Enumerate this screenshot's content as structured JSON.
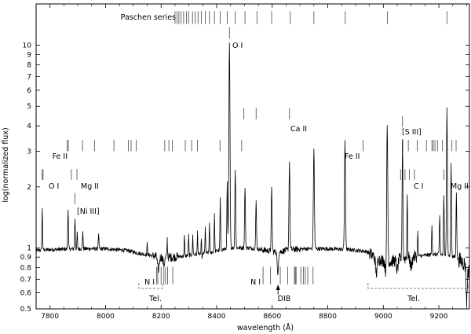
{
  "chart_data": {
    "type": "line",
    "title": "",
    "xlabel": "wavelength (Å)",
    "ylabel": "log(normalized flux)",
    "xlim": [
      7750,
      9310
    ],
    "ylim": [
      0.5,
      16
    ],
    "yscale": "log",
    "grid": false,
    "x_ticks": [
      7800,
      8000,
      8200,
      8400,
      8600,
      8800,
      9000,
      9200
    ],
    "y_ticks": [
      0.5,
      0.6,
      0.7,
      0.8,
      0.9,
      1,
      2,
      3,
      4,
      5,
      6,
      7,
      8,
      9,
      10
    ],
    "y_tick_labels": [
      "0.5",
      "0.6",
      "0.7",
      "0.8",
      "0.9",
      "1",
      "2",
      "3",
      "4",
      "5",
      "6",
      "7",
      "8",
      "9",
      "10"
    ],
    "series": [
      {
        "peaks": [
          {
            "x": 7772,
            "y": 1.55,
            "w": 1.2
          },
          {
            "x": 7865,
            "y": 1.55,
            "w": 1.3
          },
          {
            "x": 7890,
            "y": 1.4,
            "w": 1.2
          },
          {
            "x": 7898,
            "y": 1.2,
            "w": 1.0
          },
          {
            "x": 7918,
            "y": 1.22,
            "w": 1.1
          },
          {
            "x": 7975,
            "y": 1.15,
            "w": 1.3
          },
          {
            "x": 8150,
            "y": 1.05,
            "w": 1.0
          },
          {
            "x": 8222,
            "y": 1.1,
            "w": 1.0
          },
          {
            "x": 8284,
            "y": 1.15,
            "w": 1.0
          },
          {
            "x": 8299,
            "y": 1.15,
            "w": 1.0
          },
          {
            "x": 8314,
            "y": 1.15,
            "w": 1.0
          },
          {
            "x": 8331,
            "y": 1.2,
            "w": 1.0
          },
          {
            "x": 8345,
            "y": 1.22,
            "w": 1.0
          },
          {
            "x": 8359,
            "y": 1.28,
            "w": 1.0
          },
          {
            "x": 8374,
            "y": 1.35,
            "w": 1.0
          },
          {
            "x": 8392,
            "y": 1.45,
            "w": 1.1
          },
          {
            "x": 8413,
            "y": 1.75,
            "w": 1.2
          },
          {
            "x": 8438,
            "y": 2.1,
            "w": 1.3
          },
          {
            "x": 8446,
            "y": 10.2,
            "w": 2.0
          },
          {
            "x": 8467,
            "y": 2.45,
            "w": 1.5
          },
          {
            "x": 8502,
            "y": 2.0,
            "w": 1.5
          },
          {
            "x": 8542,
            "y": 1.7,
            "w": 1.5
          },
          {
            "x": 8598,
            "y": 1.95,
            "w": 1.6
          },
          {
            "x": 8662,
            "y": 2.65,
            "w": 1.7
          },
          {
            "x": 8750,
            "y": 3.1,
            "w": 1.8
          },
          {
            "x": 8862,
            "y": 3.3,
            "w": 1.9
          },
          {
            "x": 9014,
            "y": 4.2,
            "w": 2.0
          },
          {
            "x": 9069,
            "y": 3.45,
            "w": 1.5
          },
          {
            "x": 9086,
            "y": 1.8,
            "w": 1.2
          },
          {
            "x": 9124,
            "y": 1.2,
            "w": 1.2
          },
          {
            "x": 9175,
            "y": 1.3,
            "w": 1.2
          },
          {
            "x": 9203,
            "y": 1.45,
            "w": 1.3
          },
          {
            "x": 9218,
            "y": 1.8,
            "w": 1.3
          },
          {
            "x": 9229,
            "y": 4.9,
            "w": 1.6
          },
          {
            "x": 9244,
            "y": 2.6,
            "w": 1.4
          },
          {
            "x": 9263,
            "y": 1.9,
            "w": 1.3
          }
        ],
        "baseline": [
          [
            7750,
            0.97
          ],
          [
            7800,
            0.98
          ],
          [
            7900,
            0.99
          ],
          [
            8000,
            0.99
          ],
          [
            8080,
            0.97
          ],
          [
            8120,
            0.94
          ],
          [
            8160,
            0.92
          ],
          [
            8200,
            0.9
          ],
          [
            8240,
            0.9
          ],
          [
            8280,
            0.91
          ],
          [
            8330,
            0.93
          ],
          [
            8380,
            0.95
          ],
          [
            8420,
            0.98
          ],
          [
            8460,
            1.0
          ],
          [
            8520,
            1.0
          ],
          [
            8580,
            0.97
          ],
          [
            8620,
            0.95
          ],
          [
            8660,
            0.98
          ],
          [
            8720,
            0.99
          ],
          [
            8800,
            0.99
          ],
          [
            8880,
            0.98
          ],
          [
            8940,
            0.96
          ],
          [
            8980,
            0.88
          ],
          [
            9020,
            0.85
          ],
          [
            9060,
            0.88
          ],
          [
            9100,
            0.9
          ],
          [
            9150,
            0.92
          ],
          [
            9200,
            0.93
          ],
          [
            9260,
            0.9
          ],
          [
            9300,
            0.82
          ],
          [
            9310,
            0.75
          ]
        ],
        "dips": [
          {
            "x": 8190,
            "y": 0.78,
            "w": 3
          },
          {
            "x": 8210,
            "y": 0.83,
            "w": 3
          },
          {
            "x": 8346,
            "y": 0.86,
            "w": 2
          },
          {
            "x": 8620,
            "y": 0.73,
            "w": 2
          },
          {
            "x": 8975,
            "y": 0.75,
            "w": 3
          },
          {
            "x": 9010,
            "y": 0.73,
            "w": 3
          },
          {
            "x": 9050,
            "y": 0.78,
            "w": 3
          },
          {
            "x": 9100,
            "y": 0.8,
            "w": 3
          },
          {
            "x": 9300,
            "y": 0.55,
            "w": 2
          }
        ]
      }
    ],
    "line_markers": [
      {
        "label": "Paschen series",
        "y_pos": 13.7,
        "len": 0.9,
        "label_side": "left",
        "x": [
          8250,
          8257,
          8264,
          8272,
          8281,
          8291,
          8299,
          8313,
          8323,
          8333,
          8345,
          8359,
          8374,
          8392,
          8413,
          8438,
          8467,
          8502,
          8545,
          8598,
          8665,
          8750,
          8863,
          9015,
          9229
        ]
      },
      {
        "label": "O I",
        "y_pos": 11.5,
        "len": 0.8,
        "label_side": "right",
        "x": [
          8446
        ]
      },
      {
        "label": "Ca II",
        "y_pos": 4.6,
        "len": 0.8,
        "label_side": "right",
        "x": [
          8498,
          8542,
          8662
        ]
      },
      {
        "label": "[S III]",
        "y_pos": 4.2,
        "len": 0.8,
        "label_side": "right",
        "x": [
          9069
        ]
      },
      {
        "label": "Fe II",
        "y_pos": 3.2,
        "len": 0.8,
        "label_side": "left",
        "x": [
          7862,
          7866,
          7917,
          7960,
          8030,
          8082,
          8092,
          8110,
          8213,
          8228,
          8240,
          8287,
          8310,
          8331,
          8412,
          8490,
          8927
        ]
      },
      {
        "label": "Fe II",
        "y_pos": 3.2,
        "len": 0.8,
        "label_side": "left",
        "x": [
          8862
        ]
      },
      {
        "label": "",
        "y_pos": 3.2,
        "len": 0.8,
        "label_side": "none",
        "x": [
          9070,
          9090,
          9122,
          9155,
          9175,
          9180,
          9186,
          9195,
          9213,
          9247,
          9262
        ]
      },
      {
        "label": "O I",
        "y_pos": 2.3,
        "len": 0.75,
        "label_side": "right",
        "x": [
          7772,
          7775
        ]
      },
      {
        "label": "Mg II",
        "y_pos": 2.3,
        "len": 0.75,
        "label_side": "right",
        "x": [
          7877,
          7897
        ]
      },
      {
        "label": "C I",
        "y_pos": 2.3,
        "len": 0.75,
        "label_side": "right",
        "x": [
          9062,
          9078,
          9094,
          9112
        ]
      },
      {
        "label": "Mg II",
        "y_pos": 2.3,
        "len": 0.75,
        "label_side": "right",
        "x": [
          9218,
          9244
        ]
      },
      {
        "label": "[Ni III]",
        "y_pos": 1.75,
        "len": 0.8,
        "label_side": "right",
        "x": [
          7890
        ]
      },
      {
        "label": "N I",
        "y_pos": 0.73,
        "len": 1.25,
        "label_side": "left",
        "x": [
          8184,
          8188,
          8200,
          8210,
          8216,
          8223,
          8242
        ]
      },
      {
        "label": "N I",
        "y_pos": 0.73,
        "len": 1.25,
        "label_side": "left",
        "x": [
          8567,
          8594,
          8629,
          8656,
          8680,
          8683,
          8686,
          8703,
          8712,
          8719,
          8728,
          8747
        ]
      }
    ],
    "annotations": {
      "tel_1": {
        "label": "Tel.",
        "x0": 8120,
        "x1": 8205
      },
      "tel_2": {
        "label": "Tel.",
        "x0": 8945,
        "x1": 9305
      },
      "dib": {
        "label": "DIB",
        "x": 8621
      }
    },
    "labels": {
      "paschen": "Paschen series",
      "o1_top": "O I",
      "ca2": "Ca II",
      "s3": "[S III]",
      "fe2_left": "Fe II",
      "fe2_mid": "Fe II",
      "o1_low": "O I",
      "mg2_left": "Mg II",
      "ni3": "[Ni III]",
      "c1": "C I",
      "mg2_right": "Mg II",
      "n1_left": "N I",
      "n1_mid": "N I",
      "tel_1": "Tel.",
      "tel_2": "Tel.",
      "dib": "DIB"
    }
  }
}
